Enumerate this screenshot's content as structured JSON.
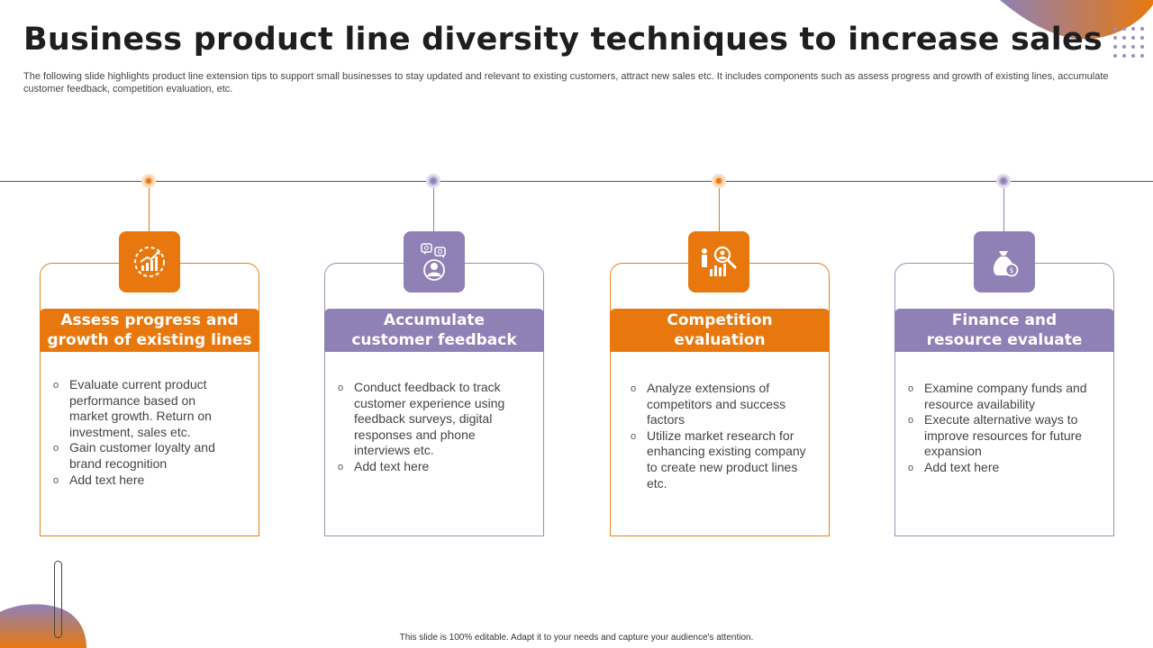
{
  "title": "Business product line diversity techniques to increase sales",
  "subtitle": "The following slide highlights product line extension tips to support small businesses to stay updated and relevant to existing customers, attract new sales etc. It includes components such as assess progress and growth of existing lines, accumulate customer feedback, competition evaluation, etc.",
  "colors": {
    "orange": "#e8780e",
    "purple": "#8f81b5"
  },
  "cards": [
    {
      "heading_line1": "Assess progress and",
      "heading_line2": "growth of existing lines",
      "icon": "growth-chart-icon",
      "bullets": [
        "Evaluate current product performance based on market growth. Return on investment, sales etc.",
        "Gain customer loyalty and brand recognition",
        "Add text here"
      ]
    },
    {
      "heading_line1": "Accumulate",
      "heading_line2": "customer feedback",
      "icon": "feedback-person-icon",
      "bullets": [
        "Conduct feedback to track customer experience using feedback surveys, digital responses and phone interviews etc.",
        "Add text here"
      ]
    },
    {
      "heading_line1": "Competition",
      "heading_line2": "evaluation",
      "icon": "analysis-magnifier-icon",
      "bullets": [
        "Analyze extensions of competitors and success factors",
        "Utilize market research for enhancing existing company to create new product lines etc."
      ]
    },
    {
      "heading_line1": "Finance and",
      "heading_line2": "resource evaluate",
      "icon": "money-bag-icon",
      "bullets": [
        "Examine company funds and resource availability",
        "Execute alternative ways to improve resources for future expansion",
        "Add text here"
      ]
    }
  ],
  "footer": "This slide is 100% editable.  Adapt it to your needs and capture your audience's attention."
}
